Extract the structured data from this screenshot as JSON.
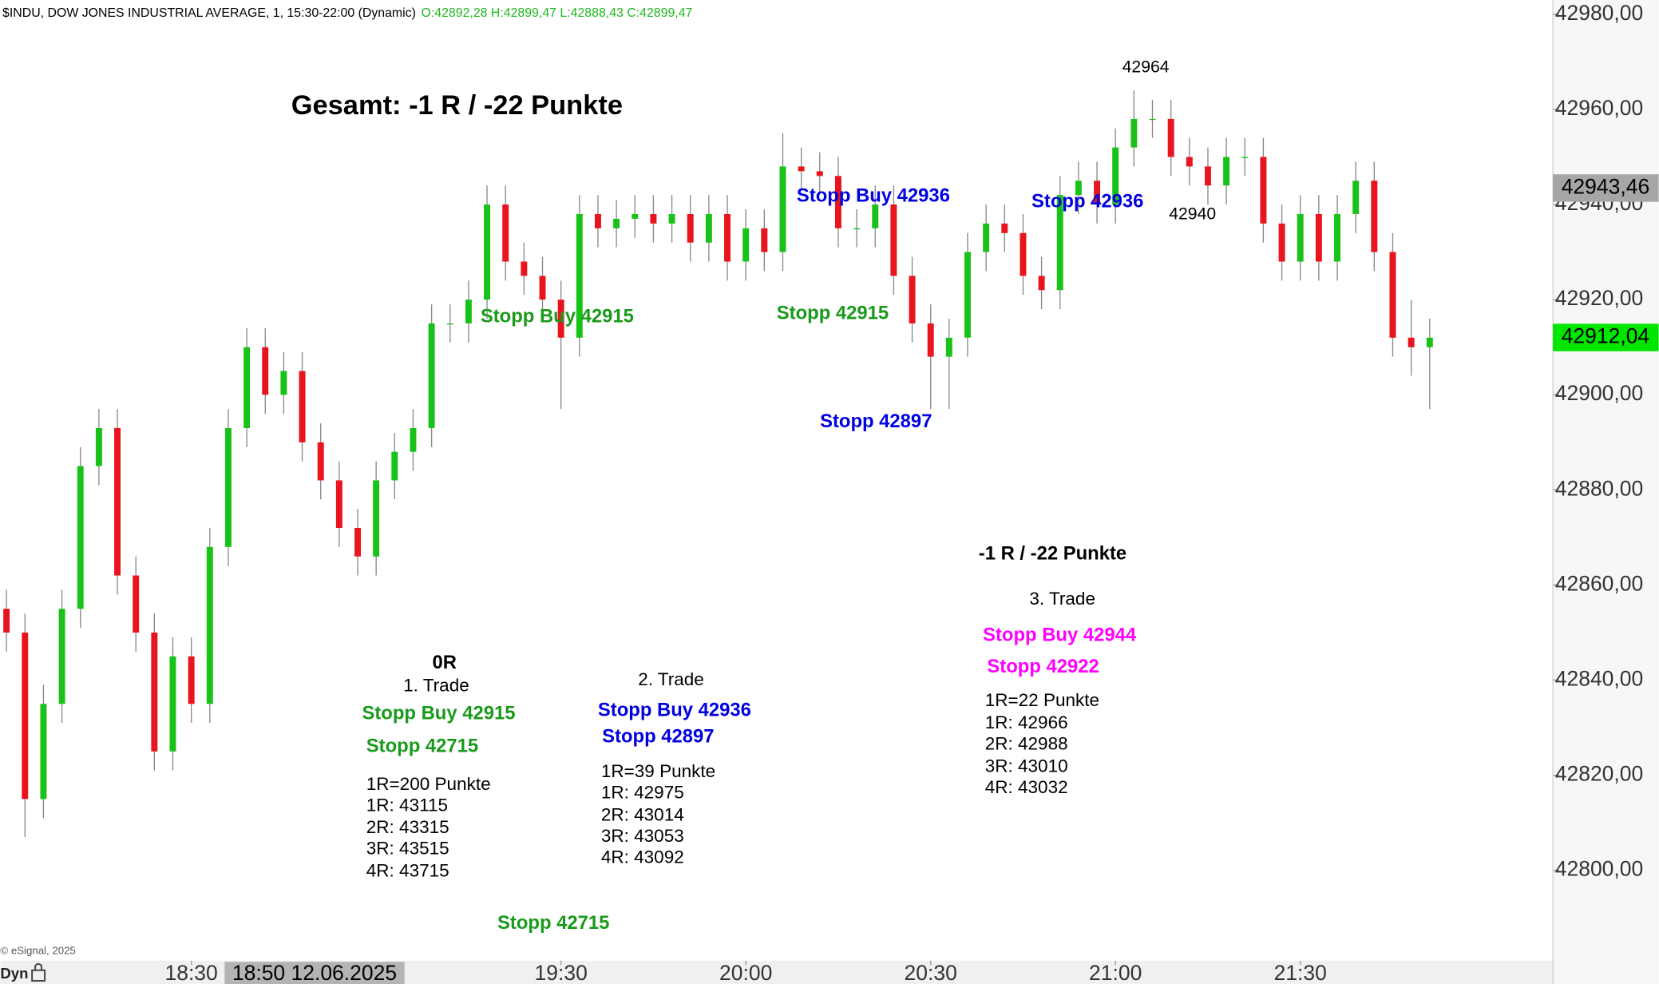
{
  "chart_data": {
    "type": "candlestick",
    "title": "$INDU, DOW JONES INDUSTRIAL AVERAGE, 1, 15:30-22:00 (Dynamic)",
    "ohlc_summary": "O:42892,28 H:42899,47 L:42888,43 C:42899,47",
    "copyright": "© eSignal, 2025",
    "mode_label": "Dyn",
    "up_color": "#19c219",
    "down_color": "#e8141e",
    "xlim": [
      1079,
      1331
    ],
    "ylim": [
      42781,
      42983
    ],
    "xticks": [
      {
        "value": 1110,
        "label": "18:30"
      },
      {
        "value": 1170,
        "label": "19:30"
      },
      {
        "value": 1200,
        "label": "20:00"
      },
      {
        "value": 1230,
        "label": "20:30"
      },
      {
        "value": 1260,
        "label": "21:00"
      },
      {
        "value": 1290,
        "label": "21:30"
      }
    ],
    "x_cursor": {
      "value": 1130,
      "label": "18:50 12.06.2025"
    },
    "yticks": [
      {
        "value": 42800,
        "label": "42800,00"
      },
      {
        "value": 42820,
        "label": "42820,00"
      },
      {
        "value": 42840,
        "label": "42840,00"
      },
      {
        "value": 42860,
        "label": "42860,00"
      },
      {
        "value": 42880,
        "label": "42880,00"
      },
      {
        "value": 42900,
        "label": "42900,00"
      },
      {
        "value": 42920,
        "label": "42920,00"
      },
      {
        "value": 42940,
        "label": "42940,00"
      },
      {
        "value": 42960,
        "label": "42960,00"
      },
      {
        "value": 42980,
        "label": "42980,00"
      }
    ],
    "price_markers": [
      {
        "value": 42943.46,
        "label": "42943,46",
        "color": "#a6a6a6",
        "text_color": "#000000"
      },
      {
        "value": 42912.04,
        "label": "42912,04",
        "color": "#00e600",
        "text_color": "#000000"
      }
    ],
    "x": [
      1080,
      1083,
      1086,
      1089,
      1092,
      1095,
      1098,
      1101,
      1104,
      1107,
      1110,
      1113,
      1116,
      1119,
      1122,
      1125,
      1128,
      1131,
      1134,
      1137,
      1140,
      1143,
      1146,
      1149,
      1152,
      1155,
      1158,
      1161,
      1164,
      1167,
      1170,
      1173,
      1176,
      1179,
      1182,
      1185,
      1188,
      1191,
      1194,
      1197,
      1200,
      1203,
      1206,
      1209,
      1212,
      1215,
      1218,
      1221,
      1224,
      1227,
      1230,
      1233,
      1236,
      1239,
      1242,
      1245,
      1248,
      1251,
      1254,
      1257,
      1260,
      1263,
      1266,
      1269,
      1272,
      1275,
      1278,
      1281,
      1284,
      1287,
      1290,
      1293,
      1296,
      1299,
      1302,
      1305,
      1308,
      1311
    ],
    "open": [
      42855,
      42850,
      42815,
      42835,
      42855,
      42885,
      42893,
      42862,
      42850,
      42825,
      42845,
      42835,
      42868,
      42893,
      42910,
      42900,
      42905,
      42890,
      42882,
      42872,
      42866,
      42882,
      42888,
      42893,
      42915,
      42915,
      42920,
      42940,
      42928,
      42925,
      42920,
      42912,
      42938,
      42935,
      42937,
      42938,
      42936,
      42938,
      42932,
      42938,
      42928,
      42935,
      42930,
      42948,
      42947,
      42946,
      42935,
      42935,
      42940,
      42925,
      42915,
      42908,
      42912,
      42930,
      42936,
      42934,
      42925,
      42922,
      42942,
      42945,
      42940,
      42952,
      42958,
      42958,
      42950,
      42948,
      42944,
      42950,
      42950,
      42936,
      42928,
      42938,
      42928,
      42938,
      42945,
      42930,
      42912,
      42910
    ],
    "high": [
      42859,
      42854,
      42839,
      42859,
      42889,
      42897,
      42897,
      42866,
      42854,
      42849,
      42849,
      42872,
      42897,
      42914,
      42914,
      42909,
      42909,
      42894,
      42886,
      42876,
      42886,
      42892,
      42897,
      42919,
      42919,
      42924,
      42944,
      42944,
      42932,
      42929,
      42924,
      42942,
      42942,
      42941,
      42942,
      42942,
      42942,
      42942,
      42942,
      42942,
      42939,
      42939,
      42955,
      42952,
      42951,
      42950,
      42939,
      42944,
      42944,
      42929,
      42919,
      42916,
      42934,
      42940,
      42940,
      42938,
      42929,
      42946,
      42949,
      42949,
      42956,
      42964,
      42962,
      42962,
      42954,
      42952,
      42954,
      42954,
      42954,
      42940,
      42942,
      42942,
      42942,
      42949,
      42949,
      42934,
      42920,
      42916
    ],
    "low": [
      42846,
      42807,
      42811,
      42831,
      42851,
      42881,
      42858,
      42846,
      42821,
      42821,
      42831,
      42831,
      42864,
      42889,
      42896,
      42896,
      42886,
      42878,
      42868,
      42862,
      42862,
      42878,
      42884,
      42889,
      42911,
      42911,
      42916,
      42924,
      42921,
      42916,
      42897,
      42908,
      42931,
      42931,
      42933,
      42932,
      42932,
      42928,
      42928,
      42924,
      42924,
      42926,
      42926,
      42943,
      42942,
      42931,
      42931,
      42931,
      42921,
      42911,
      42897,
      42897,
      42908,
      42926,
      42930,
      42921,
      42918,
      42918,
      42938,
      42936,
      42936,
      42948,
      42954,
      42946,
      42944,
      42940,
      42940,
      42946,
      42932,
      42924,
      42924,
      42924,
      42924,
      42934,
      42926,
      42908,
      42904,
      42897
    ],
    "close": [
      42850,
      42815,
      42835,
      42855,
      42885,
      42893,
      42862,
      42850,
      42825,
      42845,
      42835,
      42868,
      42893,
      42910,
      42900,
      42905,
      42890,
      42882,
      42872,
      42866,
      42882,
      42888,
      42893,
      42915,
      42915,
      42920,
      42940,
      42928,
      42925,
      42920,
      42912,
      42938,
      42935,
      42937,
      42938,
      42936,
      42938,
      42932,
      42938,
      42928,
      42935,
      42930,
      42948,
      42947,
      42946,
      42935,
      42935,
      42940,
      42925,
      42915,
      42908,
      42912,
      42930,
      42936,
      42934,
      42925,
      42922,
      42942,
      42945,
      42940,
      42952,
      42958,
      42958,
      42950,
      42948,
      42944,
      42950,
      42950,
      42936,
      42928,
      42938,
      42928,
      42938,
      42945,
      42930,
      42912,
      42910,
      42912
    ],
    "annotations": [
      {
        "text": "Gesamt: -1 R / -22 Punkte",
        "color": "#000000",
        "bold": true
      },
      {
        "text": "42964",
        "color": "#000000",
        "bold": false
      },
      {
        "text": "Stopp Buy 42936",
        "color": "#0000e0",
        "bold": true
      },
      {
        "text": "Stopp 42936",
        "color": "#0000e0",
        "bold": true
      },
      {
        "text": "42940",
        "color": "#000000",
        "bold": false
      },
      {
        "text": "Stopp Buy 42915",
        "color": "#1a9a1a",
        "bold": true
      },
      {
        "text": "Stopp 42915",
        "color": "#1a9a1a",
        "bold": true
      },
      {
        "text": "Stopp 42897",
        "color": "#0000e0",
        "bold": true
      },
      {
        "text": "-1 R / -22 Punkte",
        "color": "#000000",
        "bold": true
      },
      {
        "text": "3. Trade",
        "color": "#000000",
        "bold": false
      },
      {
        "text": "Stopp Buy 42944",
        "color": "#ff00ff",
        "bold": true
      },
      {
        "text": "Stopp 42922",
        "color": "#ff00ff",
        "bold": true
      },
      {
        "text": "1R=22 Punkte",
        "color": "#000000",
        "bold": false
      },
      {
        "text": "1R: 42966",
        "color": "#000000",
        "bold": false
      },
      {
        "text": "2R: 42988",
        "color": "#000000",
        "bold": false
      },
      {
        "text": "3R: 43010",
        "color": "#000000",
        "bold": false
      },
      {
        "text": "4R: 43032",
        "color": "#000000",
        "bold": false
      },
      {
        "text": "0R",
        "color": "#000000",
        "bold": true
      },
      {
        "text": "1. Trade",
        "color": "#000000",
        "bold": false
      },
      {
        "text": "Stopp Buy 42915",
        "color": "#1a9a1a",
        "bold": true
      },
      {
        "text": "Stopp 42715",
        "color": "#1a9a1a",
        "bold": true
      },
      {
        "text": "1R=200 Punkte",
        "color": "#000000",
        "bold": false
      },
      {
        "text": "1R: 43115",
        "color": "#000000",
        "bold": false
      },
      {
        "text": "2R: 43315",
        "color": "#000000",
        "bold": false
      },
      {
        "text": "3R: 43515",
        "color": "#000000",
        "bold": false
      },
      {
        "text": "4R: 43715",
        "color": "#000000",
        "bold": false
      },
      {
        "text": "2. Trade",
        "color": "#000000",
        "bold": false
      },
      {
        "text": "Stopp Buy 42936",
        "color": "#0000e0",
        "bold": true
      },
      {
        "text": "Stopp 42897",
        "color": "#0000e0",
        "bold": true
      },
      {
        "text": "1R=39 Punkte",
        "color": "#000000",
        "bold": false
      },
      {
        "text": "1R: 42975",
        "color": "#000000",
        "bold": false
      },
      {
        "text": "2R: 43014",
        "color": "#000000",
        "bold": false
      },
      {
        "text": "3R: 43053",
        "color": "#000000",
        "bold": false
      },
      {
        "text": "4R: 43092",
        "color": "#000000",
        "bold": false
      },
      {
        "text": "Stopp 42715",
        "color": "#1a9a1a",
        "bold": true
      }
    ]
  }
}
